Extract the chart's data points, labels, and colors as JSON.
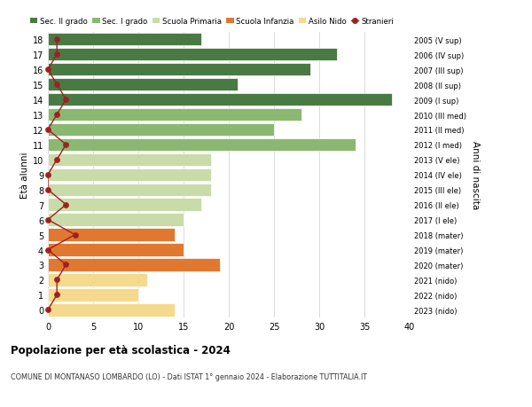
{
  "ages": [
    0,
    1,
    2,
    3,
    4,
    5,
    6,
    7,
    8,
    9,
    10,
    11,
    12,
    13,
    14,
    15,
    16,
    17,
    18
  ],
  "bar_values": [
    14,
    10,
    11,
    19,
    15,
    14,
    15,
    17,
    18,
    18,
    18,
    34,
    25,
    28,
    38,
    21,
    29,
    32,
    17
  ],
  "bar_colors": [
    "#f5d98c",
    "#f5d98c",
    "#f5d98c",
    "#e07830",
    "#e07830",
    "#e07830",
    "#c8dba8",
    "#c8dba8",
    "#c8dba8",
    "#c8dba8",
    "#c8dba8",
    "#8ab870",
    "#8ab870",
    "#8ab870",
    "#4a7a44",
    "#4a7a44",
    "#4a7a44",
    "#4a7a44",
    "#4a7a44"
  ],
  "stranieri_values": [
    0,
    1,
    1,
    2,
    0,
    3,
    0,
    2,
    0,
    0,
    1,
    2,
    0,
    1,
    2,
    1,
    0,
    1,
    1
  ],
  "right_labels": [
    "2023 (nido)",
    "2022 (nido)",
    "2021 (nido)",
    "2020 (mater)",
    "2019 (mater)",
    "2018 (mater)",
    "2017 (I ele)",
    "2016 (II ele)",
    "2015 (III ele)",
    "2014 (IV ele)",
    "2013 (V ele)",
    "2012 (I med)",
    "2011 (II med)",
    "2010 (III med)",
    "2009 (I sup)",
    "2008 (II sup)",
    "2007 (III sup)",
    "2006 (IV sup)",
    "2005 (V sup)"
  ],
  "legend_labels": [
    "Sec. II grado",
    "Sec. I grado",
    "Scuola Primaria",
    "Scuola Infanzia",
    "Asilo Nido",
    "Stranieri"
  ],
  "legend_colors": [
    "#4a7a44",
    "#8ab870",
    "#c8dba8",
    "#e07830",
    "#f5d98c",
    "#a02020"
  ],
  "ylabel": "Età alunni",
  "right_ylabel": "Anni di nascita",
  "title": "Popolazione per età scolastica - 2024",
  "subtitle": "COMUNE DI MONTANASO LOMBARDO (LO) - Dati ISTAT 1° gennaio 2024 - Elaborazione TUTTITALIA.IT",
  "xlim": [
    0,
    40
  ],
  "xticks": [
    0,
    5,
    10,
    15,
    20,
    25,
    30,
    35,
    40
  ],
  "bg_color": "#ffffff",
  "grid_color": "#cccccc",
  "stranieri_color": "#a02020"
}
